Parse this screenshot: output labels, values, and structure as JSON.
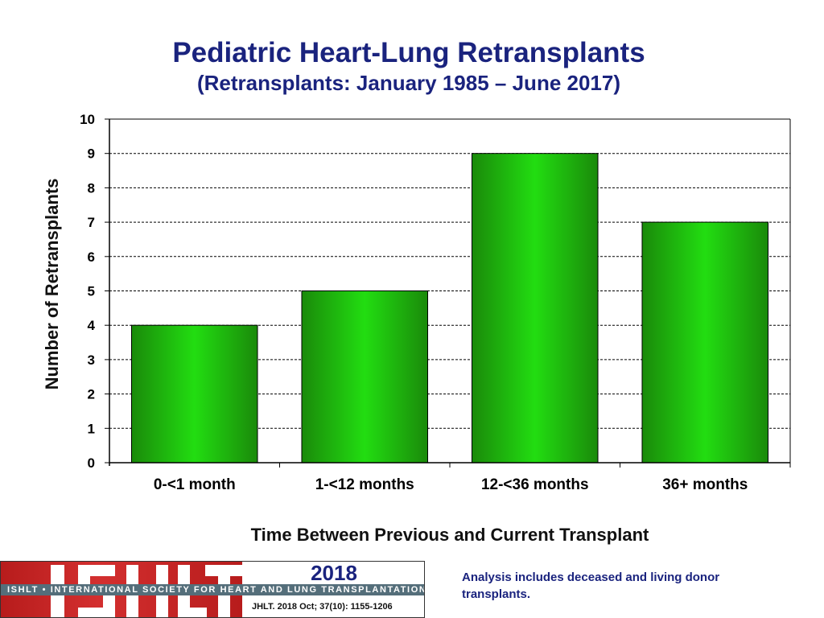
{
  "chart_data": {
    "type": "bar",
    "title": "Pediatric Heart-Lung Retransplants",
    "subtitle": "(Retransplants: January 1985 – June 2017)",
    "categories": [
      "0-<1 month",
      "1-<12 months",
      "12-<36 months",
      "36+ months"
    ],
    "values": [
      4,
      5,
      9,
      7
    ],
    "xlabel": "Time Between Previous and Current Transplant",
    "ylabel": "Number of Retransplants",
    "ylim": [
      0,
      10
    ],
    "yticks": [
      0,
      1,
      2,
      3,
      4,
      5,
      6,
      7,
      8,
      9,
      10
    ],
    "grid": true,
    "bar_color": "#22dd11"
  },
  "footer": {
    "logo_text": "ISHLT",
    "logo_band": "ISHLT • INTERNATIONAL SOCIETY FOR HEART AND LUNG TRANSPLANTATION",
    "year": "2018",
    "citation": "JHLT. 2018 Oct; 37(10): 1155-1206",
    "note": "Analysis includes deceased and living donor transplants."
  }
}
